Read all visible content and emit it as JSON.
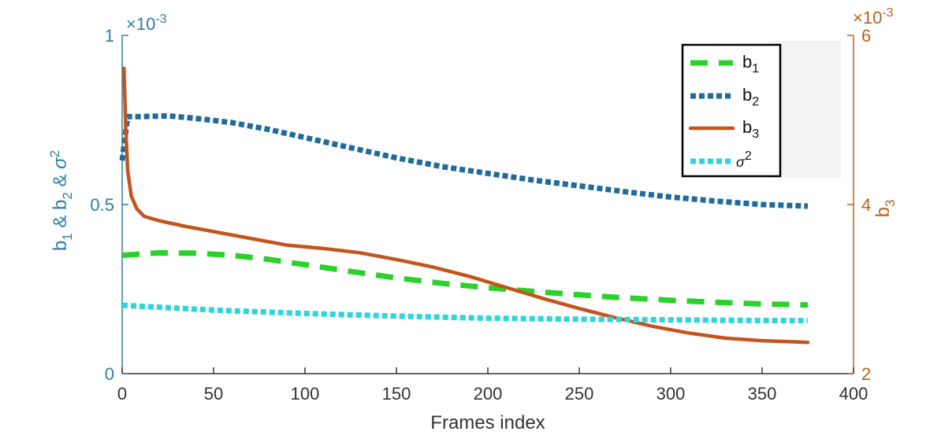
{
  "chart_data": {
    "type": "line",
    "xlabel": "Frames index",
    "xlim": [
      0,
      400
    ],
    "xticks": [
      "0",
      "50",
      "100",
      "150",
      "200",
      "250",
      "300",
      "350",
      "400"
    ],
    "ylabel_left": [
      "b",
      "1",
      " & b",
      "2",
      " & ",
      "σ",
      "2"
    ],
    "ylim_left": [
      0,
      0.001
    ],
    "yticks_left": [
      "0",
      "0.5",
      "1"
    ],
    "yexp_left": [
      "×10",
      "-3"
    ],
    "ylabel_right": [
      "b",
      "3"
    ],
    "ylim_right": [
      0.002,
      0.006
    ],
    "yticks_right": [
      "2",
      "4",
      "6"
    ],
    "yexp_right": [
      "×10",
      "-3"
    ],
    "legend_position": "top-right",
    "grid": false,
    "series": [
      {
        "name": [
          "b",
          "1"
        ],
        "axis": "left",
        "color": "#2ad12a",
        "style": "dashed",
        "x": [
          0,
          20,
          40,
          60,
          80,
          100,
          125,
          150,
          175,
          200,
          225,
          250,
          275,
          300,
          325,
          350,
          375
        ],
        "y": [
          0.00035,
          0.000357,
          0.000356,
          0.00035,
          0.000338,
          0.000322,
          0.000302,
          0.000283,
          0.000267,
          0.000254,
          0.000243,
          0.000233,
          0.000224,
          0.000217,
          0.000211,
          0.000206,
          0.000203
        ]
      },
      {
        "name": [
          "b",
          "2"
        ],
        "axis": "left",
        "color": "#1f6b99",
        "style": "dotted",
        "x": [
          0,
          3,
          10,
          25,
          40,
          60,
          80,
          100,
          125,
          150,
          175,
          200,
          225,
          250,
          275,
          300,
          325,
          350,
          375
        ],
        "y": [
          0.00063,
          0.00076,
          0.00076,
          0.000762,
          0.000755,
          0.000742,
          0.000722,
          0.000698,
          0.000668,
          0.000638,
          0.000612,
          0.000592,
          0.000572,
          0.000555,
          0.000538,
          0.000522,
          0.00051,
          0.0005,
          0.000495
        ]
      },
      {
        "name": [
          "b",
          "3"
        ],
        "axis": "right",
        "color": "#c4541e",
        "style": "solid",
        "x": [
          1,
          2,
          3,
          5,
          8,
          12,
          20,
          35,
          50,
          70,
          90,
          110,
          130,
          150,
          170,
          190,
          210,
          230,
          250,
          270,
          290,
          310,
          330,
          350,
          375
        ],
        "y": [
          0.00561,
          0.0049,
          0.0044,
          0.0041,
          0.00395,
          0.00386,
          0.00381,
          0.00374,
          0.00368,
          0.0036,
          0.00352,
          0.00348,
          0.00343,
          0.00335,
          0.00326,
          0.00315,
          0.00302,
          0.00289,
          0.00277,
          0.00266,
          0.00256,
          0.00248,
          0.00242,
          0.00239,
          0.00237
        ]
      },
      {
        "name": [
          "σ",
          "2"
        ],
        "axis": "left",
        "color": "#2fd4dc",
        "style": "dotted",
        "x": [
          0,
          50,
          100,
          150,
          200,
          250,
          300,
          350,
          375
        ],
        "y": [
          0.000202,
          0.000188,
          0.000178,
          0.00017,
          0.000164,
          0.000161,
          0.000159,
          0.000157,
          0.000157
        ]
      }
    ]
  }
}
